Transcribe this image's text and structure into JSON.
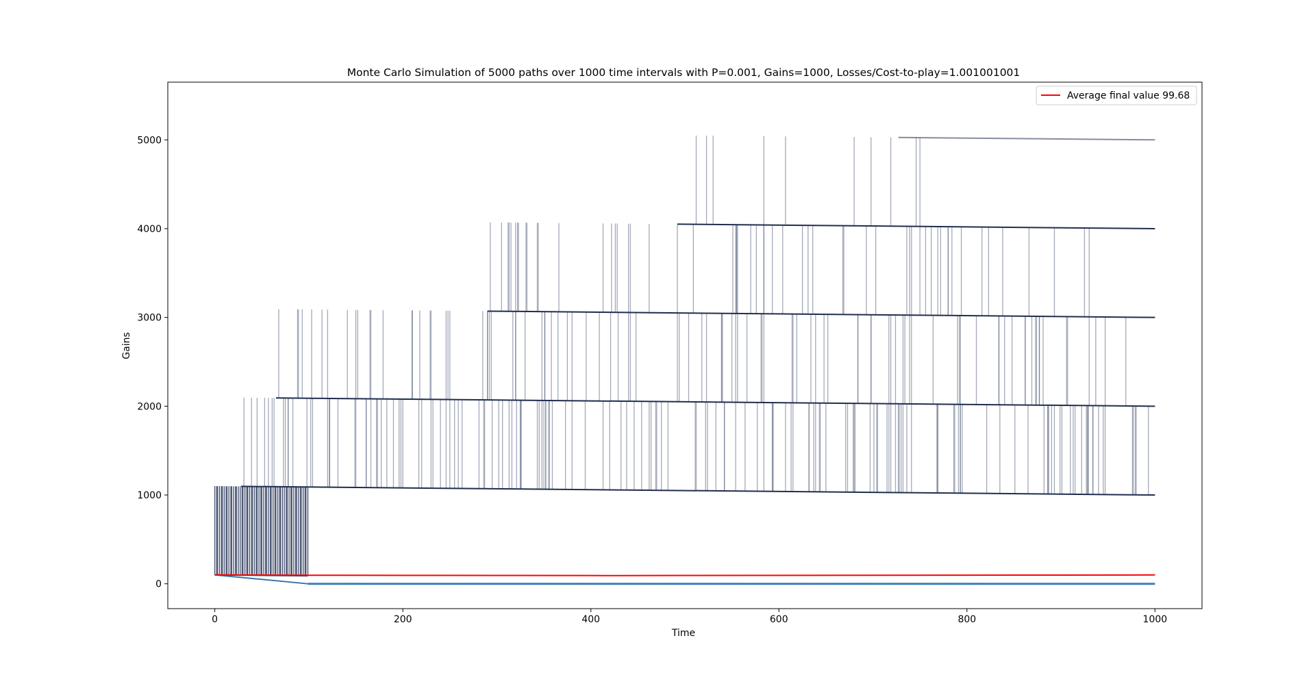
{
  "chart_data": {
    "type": "line",
    "title": "Monte Carlo Simulation of 5000 paths over 1000 time intervals with P=0.001, Gains=1000, Losses/Cost-to-play=1.001001001",
    "xlabel": "Time",
    "ylabel": "Gains",
    "xlim": [
      -50,
      1050
    ],
    "ylim": [
      -280,
      5650
    ],
    "xticks": [
      0,
      200,
      400,
      600,
      800,
      1000
    ],
    "yticks": [
      0,
      1000,
      2000,
      3000,
      4000,
      5000
    ],
    "grid": false,
    "legend_position": "top-right",
    "bands": [
      {
        "start_value": 100,
        "jump_start": 0,
        "jump_end": 99,
        "dense": true
      },
      {
        "start_value": 1100,
        "jump_start": 28,
        "jump_end": 996
      },
      {
        "start_value": 2100,
        "jump_start": 65,
        "jump_end": 975
      },
      {
        "start_value": 3100,
        "jump_start": 290,
        "jump_end": 935
      },
      {
        "start_value": 4100,
        "jump_start": 492,
        "jump_end": 770
      },
      {
        "start_value": 5100,
        "jump_start": 727,
        "jump_end": 727
      }
    ],
    "jumps": [
      {
        "from_band": 2,
        "to_band": 3,
        "x": 65
      },
      {
        "from_band": 3,
        "to_band": 4,
        "x": 290
      },
      {
        "from_band": 4,
        "to_band": 5,
        "x": 492
      },
      {
        "from_band": 5,
        "to_band": 6,
        "x": 727
      }
    ],
    "zero_line": {
      "x_start": 99,
      "x_end": 1000,
      "value": 0
    },
    "series": [
      {
        "name": "Average final value 99.68",
        "color": "#ff0000",
        "x": [
          0,
          50,
          100,
          200,
          300,
          400,
          420,
          500,
          600,
          700,
          800,
          850,
          900,
          1000
        ],
        "y": [
          100,
          98,
          96,
          95,
          94,
          93,
          92,
          94,
          95,
          96,
          97,
          98,
          98,
          99.68
        ]
      }
    ]
  }
}
